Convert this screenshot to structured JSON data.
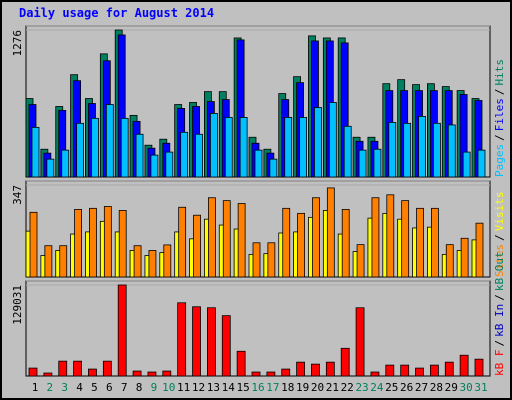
{
  "title": "Daily usage for August 2014",
  "legend_separator": "/",
  "chart_data": [
    {
      "type": "bar",
      "ylim": [
        0,
        1276
      ],
      "yticks": [
        1276
      ],
      "series": [
        {
          "name": "Hits",
          "color": "#008060",
          "values": [
            681,
            241,
            612,
            888,
            681,
            1069,
            1276,
            535,
            276,
            328,
            629,
            647,
            741,
            741,
            1207,
            345,
            241,
            724,
            871,
            1225,
            1207,
            1207,
            345,
            345,
            810,
            845,
            802,
            810,
            785,
            750,
            681
          ]
        },
        {
          "name": "Files",
          "color": "#0000ff",
          "values": [
            629,
            207,
            578,
            836,
            638,
            1009,
            1233,
            483,
            250,
            293,
            595,
            612,
            655,
            672,
            1190,
            293,
            207,
            672,
            819,
            1181,
            1181,
            1164,
            310,
            310,
            750,
            750,
            750,
            750,
            750,
            716,
            664
          ]
        },
        {
          "name": "Pages",
          "color": "#00c0ff",
          "values": [
            431,
            155,
            233,
            466,
            509,
            629,
            509,
            371,
            190,
            216,
            388,
            371,
            552,
            517,
            517,
            233,
            155,
            517,
            517,
            603,
            647,
            440,
            233,
            241,
            474,
            466,
            526,
            466,
            452,
            216,
            233
          ]
        }
      ]
    },
    {
      "type": "bar",
      "ylim": [
        0,
        347
      ],
      "yticks": [
        347
      ],
      "series": [
        {
          "name": "Visits",
          "color": "#ffff00",
          "values": [
            173,
            81,
            100,
            162,
            170,
            210,
            170,
            100,
            81,
            92,
            170,
            144,
            218,
            196,
            181,
            85,
            88,
            166,
            170,
            225,
            251,
            162,
            96,
            222,
            240,
            218,
            185,
            188,
            85,
            100,
            140
          ]
        },
        {
          "name": "Sites",
          "color": "#ff8000",
          "values": [
            244,
            118,
            118,
            255,
            259,
            266,
            251,
            118,
            100,
            121,
            263,
            233,
            299,
            288,
            277,
            129,
            129,
            259,
            240,
            299,
            336,
            255,
            122,
            299,
            310,
            288,
            259,
            259,
            122,
            146,
            203
          ]
        }
      ]
    },
    {
      "type": "bar",
      "ylim": [
        0,
        129031
      ],
      "yticks": [
        129031
      ],
      "categories": [
        "1",
        "2",
        "3",
        "4",
        "5",
        "6",
        "7",
        "8",
        "9",
        "10",
        "11",
        "12",
        "13",
        "14",
        "15",
        "16",
        "17",
        "18",
        "19",
        "20",
        "21",
        "22",
        "23",
        "24",
        "25",
        "26",
        "27",
        "28",
        "29",
        "30",
        "31"
      ],
      "category_colors": [
        "#000000",
        "#00805c",
        "#00805c",
        "#000000",
        "#000000",
        "#000000",
        "#000000",
        "#000000",
        "#00805c",
        "#00805c",
        "#000000",
        "#000000",
        "#000000",
        "#000000",
        "#000000",
        "#00805c",
        "#00805c",
        "#000000",
        "#000000",
        "#000000",
        "#000000",
        "#000000",
        "#00805c",
        "#00805c",
        "#000000",
        "#000000",
        "#000000",
        "#000000",
        "#000000",
        "#00805c",
        "#00805c"
      ],
      "series": [
        {
          "name": "kB F",
          "color": "#ff0000",
          "values": [
            11220,
            4208,
            21039,
            21039,
            9817,
            21039,
            129031,
            7013,
            5610,
            7013,
            103786,
            98176,
            96773,
            85553,
            35063,
            5610,
            5610,
            9817,
            19637,
            16831,
            19637,
            39271,
            96773,
            5610,
            15428,
            15428,
            11220,
            15428,
            19637,
            29455,
            23845
          ]
        }
      ],
      "extra_legend": [
        {
          "name": "kB In",
          "color": "#0000c0"
        },
        {
          "name": "kB Out",
          "color": "#008060"
        }
      ]
    }
  ]
}
